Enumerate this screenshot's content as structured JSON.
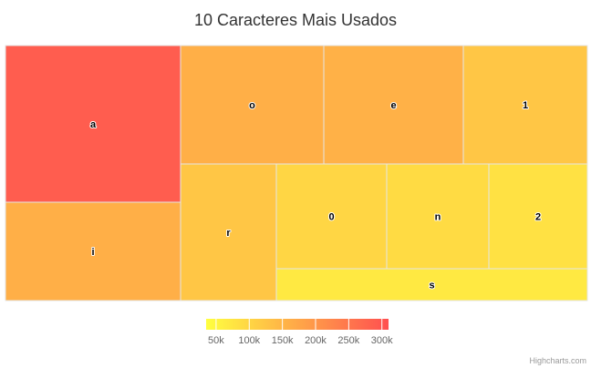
{
  "chart_data": {
    "type": "treemap",
    "title": "10 Caracteres Mais Usados",
    "leaves": [
      {
        "name": "a",
        "value": 290000
      },
      {
        "name": "o",
        "value": 160000
      },
      {
        "name": "e",
        "value": 158000
      },
      {
        "name": "i",
        "value": 160000
      },
      {
        "name": "r",
        "value": 125000
      },
      {
        "name": "1",
        "value": 125000
      },
      {
        "name": "0",
        "value": 100000
      },
      {
        "name": "n",
        "value": 92000
      },
      {
        "name": "2",
        "value": 82000
      },
      {
        "name": "s",
        "value": 70000
      }
    ],
    "color_axis": {
      "min": 35000,
      "max": 310000,
      "min_color": "#FFFF40",
      "max_color": "#FF5050",
      "ticks": [
        50000,
        100000,
        150000,
        200000,
        250000,
        300000
      ],
      "tick_labels": [
        "50k",
        "100k",
        "150k",
        "200k",
        "250k",
        "300k"
      ],
      "legend_position": "bottom-center"
    }
  },
  "credits": "Highcharts.com"
}
